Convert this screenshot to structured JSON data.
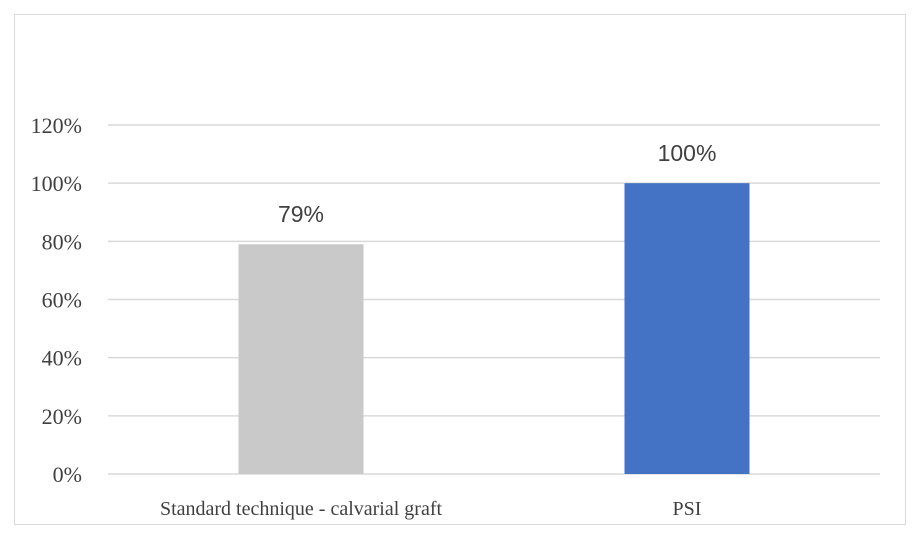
{
  "chart_data": {
    "type": "bar",
    "categories": [
      "Standard technique - calvarial graft",
      "PSI"
    ],
    "values": [
      79,
      100
    ],
    "value_labels": [
      "79%",
      "100%"
    ],
    "bar_colors": [
      "#c9c9c9",
      "#4472c4"
    ],
    "ylim": [
      0,
      120
    ],
    "y_ticks": [
      0,
      20,
      40,
      60,
      80,
      100,
      120
    ],
    "y_tick_labels": [
      "0%",
      "20%",
      "40%",
      "60%",
      "80%",
      "100%",
      "120%"
    ],
    "grid": true,
    "legend": "none",
    "gridline_color": "#d9d9d9"
  }
}
